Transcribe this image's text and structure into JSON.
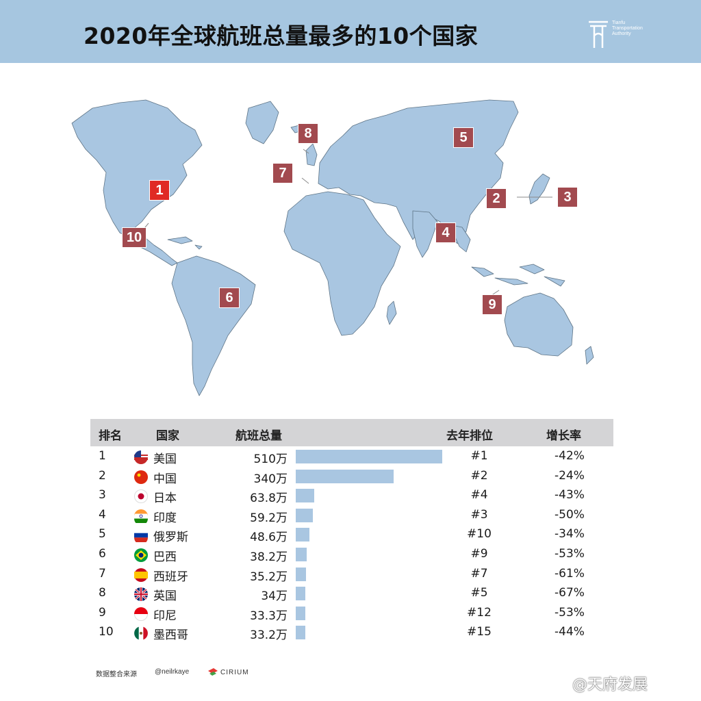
{
  "header": {
    "title": "2020年全球航班总量最多的10个国家",
    "logo_text": "Tianfu\nTransportation\nAuthority"
  },
  "map": {
    "markers": [
      "1",
      "2",
      "3",
      "4",
      "5",
      "6",
      "7",
      "8",
      "9",
      "10"
    ]
  },
  "table": {
    "headers": {
      "rank": "排名",
      "country": "国家",
      "flights": "航班总量",
      "last": "去年排位",
      "growth": "增长率"
    },
    "rows": [
      {
        "rank": "1",
        "country": "美国",
        "flights": "510万",
        "last": "#1",
        "growth": "-42%",
        "flag": "us-flag-icon"
      },
      {
        "rank": "2",
        "country": "中国",
        "flights": "340万",
        "last": "#2",
        "growth": "-24%",
        "flag": "cn-flag-icon"
      },
      {
        "rank": "3",
        "country": "日本",
        "flights": "63.8万",
        "last": "#4",
        "growth": "-43%",
        "flag": "jp-flag-icon"
      },
      {
        "rank": "4",
        "country": "印度",
        "flights": "59.2万",
        "last": "#3",
        "growth": "-50%",
        "flag": "in-flag-icon"
      },
      {
        "rank": "5",
        "country": "俄罗斯",
        "flights": "48.6万",
        "last": "#10",
        "growth": "-34%",
        "flag": "ru-flag-icon"
      },
      {
        "rank": "6",
        "country": "巴西",
        "flights": "38.2万",
        "last": "#9",
        "growth": "-53%",
        "flag": "br-flag-icon"
      },
      {
        "rank": "7",
        "country": "西班牙",
        "flights": "35.2万",
        "last": "#7",
        "growth": "-61%",
        "flag": "es-flag-icon"
      },
      {
        "rank": "8",
        "country": "英国",
        "flights": "34万",
        "last": "#5",
        "growth": "-67%",
        "flag": "uk-flag-icon"
      },
      {
        "rank": "9",
        "country": "印尼",
        "flights": "33.3万",
        "last": "#12",
        "growth": "-53%",
        "flag": "id-flag-icon"
      },
      {
        "rank": "10",
        "country": "墨西哥",
        "flights": "33.2万",
        "last": "#15",
        "growth": "-44%",
        "flag": "mx-flag-icon"
      }
    ]
  },
  "chart_data": {
    "type": "bar",
    "categories": [
      "美国",
      "中国",
      "日本",
      "印度",
      "俄罗斯",
      "巴西",
      "西班牙",
      "英国",
      "印尼",
      "墨西哥"
    ],
    "values": [
      510,
      340,
      63.8,
      59.2,
      48.6,
      38.2,
      35.2,
      34,
      33.3,
      33.2
    ],
    "unit": "万",
    "title": "2020年全球航班总量最多的10个国家",
    "xlabel": "",
    "ylabel": "航班总量",
    "xlim": [
      0,
      510
    ],
    "orientation": "horizontal",
    "bar_color": "#a9c6e1"
  },
  "footer": {
    "source": "数据整合来源",
    "author": "@neilrkaye",
    "brand": "CIRIUM",
    "watermark": "@天府发展"
  },
  "colors": {
    "header_bg": "#a6c6e0",
    "land": "#a9c6e1",
    "marker": "#a24a4f",
    "marker_primary": "#e02a24",
    "table_header_bg": "#d4d4d6"
  }
}
